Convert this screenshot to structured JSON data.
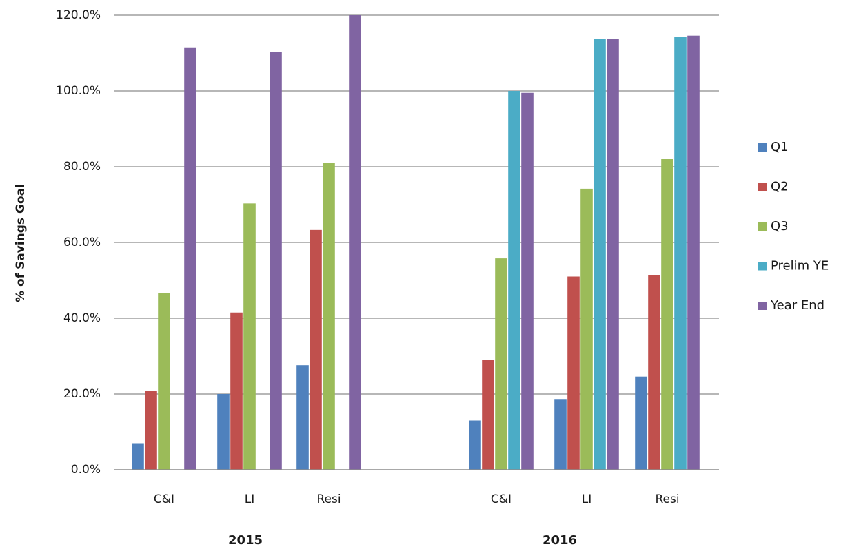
{
  "chart_data": {
    "type": "bar",
    "title": "",
    "xlabel": "",
    "ylabel": "% of Savings Goal",
    "ylim": [
      0,
      120
    ],
    "yticks": [
      "0.0%",
      "20.0%",
      "40.0%",
      "60.0%",
      "80.0%",
      "100.0%",
      "120.0%"
    ],
    "grid": true,
    "legend_position": "right",
    "groups": [
      {
        "label": "2015",
        "categories": [
          "C&I",
          "LI",
          "Resi"
        ]
      },
      {
        "label": "2016",
        "categories": [
          "C&I",
          "LI",
          "Resi"
        ]
      }
    ],
    "series": [
      {
        "name": "Q1",
        "color": "#4F81BD",
        "values": [
          7.0,
          20.0,
          27.6,
          13.0,
          18.5,
          24.6
        ]
      },
      {
        "name": "Q2",
        "color": "#C0504D",
        "values": [
          20.8,
          41.5,
          63.3,
          29.0,
          51.0,
          51.3
        ]
      },
      {
        "name": "Q3",
        "color": "#9BBB59",
        "values": [
          46.6,
          70.3,
          81.0,
          55.8,
          74.2,
          82.0
        ]
      },
      {
        "name": "Prelim YE",
        "color": "#4BACC6",
        "values": [
          null,
          null,
          null,
          100.0,
          113.8,
          114.2
        ]
      },
      {
        "name": "Year End",
        "color": "#8064A2",
        "values": [
          111.5,
          110.2,
          120.0,
          99.5,
          113.8,
          114.6
        ]
      }
    ]
  }
}
